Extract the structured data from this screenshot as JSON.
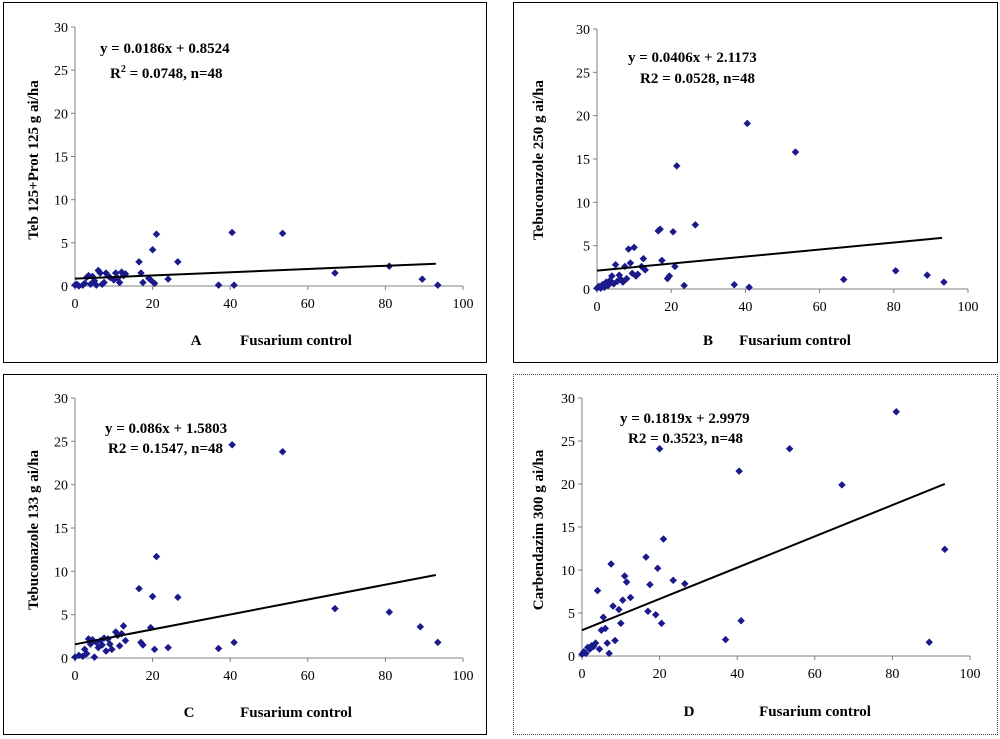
{
  "colors": {
    "marker": "#1a1a8c",
    "trend": "#000000",
    "axis": "#808080"
  },
  "chart_data": [
    {
      "type": "scatter",
      "panel_label": "A",
      "xlabel": "Fusarium control",
      "ylabel": "Teb 125+Prot 125 g ai/ha",
      "equation": "y = 0.0186x + 0.8524",
      "r2_prefix": "R",
      "r2_sup": "2",
      "r2_rest": " = 0.0748, n=48",
      "slope": 0.0186,
      "intercept": 0.8524,
      "trend_x": [
        0,
        93
      ],
      "xlim": [
        0,
        100
      ],
      "ylim": [
        0,
        30
      ],
      "xticks": [
        0,
        20,
        40,
        60,
        80,
        100
      ],
      "yticks": [
        0,
        5,
        10,
        15,
        20,
        25,
        30
      ],
      "points": [
        [
          0,
          0.1
        ],
        [
          0.5,
          0.2
        ],
        [
          1,
          0
        ],
        [
          2,
          0.1
        ],
        [
          2.5,
          0.3
        ],
        [
          3,
          1.0
        ],
        [
          3.5,
          1.2
        ],
        [
          4,
          0.2
        ],
        [
          4.5,
          1.1
        ],
        [
          5,
          0.6
        ],
        [
          5.5,
          0.1
        ],
        [
          6,
          1.8
        ],
        [
          6.5,
          1.5
        ],
        [
          7,
          0.2
        ],
        [
          7.5,
          0.4
        ],
        [
          8,
          1.5
        ],
        [
          8.5,
          1.2
        ],
        [
          9,
          1.0
        ],
        [
          10,
          0.7
        ],
        [
          10.5,
          1.5
        ],
        [
          11,
          0.9
        ],
        [
          11.5,
          0.4
        ],
        [
          12,
          1.6
        ],
        [
          12.5,
          1.2
        ],
        [
          13,
          1.4
        ],
        [
          16.5,
          2.8
        ],
        [
          17,
          1.5
        ],
        [
          17.5,
          0.4
        ],
        [
          19,
          0.9
        ],
        [
          19.5,
          0.7
        ],
        [
          20,
          4.2
        ],
        [
          20.5,
          0.3
        ],
        [
          21,
          6.0
        ],
        [
          24,
          0.8
        ],
        [
          26.5,
          2.8
        ],
        [
          37,
          0.1
        ],
        [
          40.5,
          6.2
        ],
        [
          41,
          0.1
        ],
        [
          53.5,
          6.1
        ],
        [
          67,
          1.5
        ],
        [
          81,
          2.3
        ],
        [
          89.5,
          0.8
        ],
        [
          93.5,
          0.1
        ]
      ]
    },
    {
      "type": "scatter",
      "panel_label": "B",
      "xlabel": "Fusarium control",
      "ylabel": "Tebuconazole 250 g ai/ha",
      "equation": "y = 0.0406x + 2.1173",
      "r2_text": "R2 = 0.0528, n=48",
      "slope": 0.0406,
      "intercept": 2.1173,
      "trend_x": [
        0,
        93
      ],
      "xlim": [
        0,
        100
      ],
      "ylim": [
        0,
        30
      ],
      "xticks": [
        0,
        20,
        40,
        60,
        80,
        100
      ],
      "yticks": [
        0,
        5,
        10,
        15,
        20,
        25,
        30
      ],
      "points": [
        [
          0,
          0.1
        ],
        [
          0.5,
          0.3
        ],
        [
          1,
          0.1
        ],
        [
          1.5,
          0.5
        ],
        [
          2,
          0.2
        ],
        [
          2.5,
          0.8
        ],
        [
          3,
          0.4
        ],
        [
          3.5,
          1.0
        ],
        [
          4,
          1.5
        ],
        [
          4.5,
          0.6
        ],
        [
          5,
          2.8
        ],
        [
          5.5,
          0.9
        ],
        [
          6,
          1.6
        ],
        [
          6.5,
          1.1
        ],
        [
          7,
          0.8
        ],
        [
          7.5,
          2.6
        ],
        [
          8,
          1.2
        ],
        [
          8.5,
          4.6
        ],
        [
          9,
          3.0
        ],
        [
          9.5,
          1.8
        ],
        [
          10,
          4.8
        ],
        [
          10.5,
          1.5
        ],
        [
          11,
          1.7
        ],
        [
          12,
          2.6
        ],
        [
          12.5,
          3.5
        ],
        [
          13,
          2.2
        ],
        [
          16.5,
          6.7
        ],
        [
          17,
          6.9
        ],
        [
          17.5,
          3.3
        ],
        [
          19,
          1.2
        ],
        [
          19.5,
          1.5
        ],
        [
          20.5,
          6.6
        ],
        [
          21,
          2.6
        ],
        [
          21.5,
          14.2
        ],
        [
          23.5,
          0.4
        ],
        [
          26.5,
          7.4
        ],
        [
          37,
          0.5
        ],
        [
          40.5,
          19.1
        ],
        [
          41,
          0.2
        ],
        [
          53.5,
          15.8
        ],
        [
          66.5,
          1.1
        ],
        [
          80.5,
          2.1
        ],
        [
          89,
          1.6
        ],
        [
          93.5,
          0.8
        ]
      ]
    },
    {
      "type": "scatter",
      "panel_label": "C",
      "xlabel": "Fusarium control",
      "ylabel": "Tebuconazole 133 g ai/ha",
      "equation": "y = 0.086x + 1.5803",
      "r2_text": "R2 = 0.1547, n=48",
      "slope": 0.086,
      "intercept": 1.5803,
      "trend_x": [
        0,
        93
      ],
      "xlim": [
        0,
        100
      ],
      "ylim": [
        0,
        30
      ],
      "xticks": [
        0,
        20,
        40,
        60,
        80,
        100
      ],
      "yticks": [
        0,
        5,
        10,
        15,
        20,
        25,
        30
      ],
      "points": [
        [
          0,
          0.1
        ],
        [
          1,
          0.3
        ],
        [
          2,
          0.2
        ],
        [
          2.5,
          1.0
        ],
        [
          3,
          0.5
        ],
        [
          3.5,
          2.2
        ],
        [
          4,
          1.6
        ],
        [
          4.5,
          2.1
        ],
        [
          5,
          0.1
        ],
        [
          5.5,
          1.8
        ],
        [
          6,
          1.2
        ],
        [
          6.5,
          2.0
        ],
        [
          7,
          1.5
        ],
        [
          7.5,
          2.3
        ],
        [
          8,
          0.8
        ],
        [
          8.5,
          2.2
        ],
        [
          9,
          1.6
        ],
        [
          9.5,
          1.0
        ],
        [
          10.5,
          3.0
        ],
        [
          11,
          2.6
        ],
        [
          11.5,
          1.4
        ],
        [
          12,
          2.8
        ],
        [
          12.5,
          3.7
        ],
        [
          13,
          2.0
        ],
        [
          16.5,
          8.0
        ],
        [
          17,
          1.8
        ],
        [
          17.5,
          1.5
        ],
        [
          19.5,
          3.5
        ],
        [
          20,
          7.1
        ],
        [
          20.5,
          1.0
        ],
        [
          21,
          11.7
        ],
        [
          24,
          1.2
        ],
        [
          26.5,
          7.0
        ],
        [
          37,
          1.1
        ],
        [
          40.5,
          24.6
        ],
        [
          41,
          1.8
        ],
        [
          53.5,
          23.8
        ],
        [
          67,
          5.7
        ],
        [
          81,
          5.3
        ],
        [
          89,
          3.6
        ],
        [
          93.5,
          1.8
        ]
      ]
    },
    {
      "type": "scatter",
      "panel_label": "D",
      "xlabel": "Fusarium control",
      "ylabel": "Carbendazim 300 g ai/ha",
      "equation": "y = 0.1819x + 2.9979",
      "r2_text": "R2 = 0.3523, n=48",
      "slope": 0.1819,
      "intercept": 2.9979,
      "trend_x": [
        0,
        93.5
      ],
      "xlim": [
        0,
        100
      ],
      "ylim": [
        0,
        30
      ],
      "xticks": [
        0,
        20,
        40,
        60,
        80,
        100
      ],
      "yticks": [
        0,
        5,
        10,
        15,
        20,
        25,
        30
      ],
      "points": [
        [
          0,
          0.2
        ],
        [
          0.5,
          0.5
        ],
        [
          1,
          0.3
        ],
        [
          1.5,
          1.0
        ],
        [
          2,
          0.8
        ],
        [
          2.5,
          1.2
        ],
        [
          3,
          1.1
        ],
        [
          3.5,
          1.5
        ],
        [
          4,
          7.6
        ],
        [
          4.5,
          0.8
        ],
        [
          5,
          3.0
        ],
        [
          5.5,
          4.5
        ],
        [
          6,
          3.2
        ],
        [
          6.5,
          1.5
        ],
        [
          7,
          0.3
        ],
        [
          7.5,
          10.7
        ],
        [
          8,
          5.8
        ],
        [
          8.5,
          1.8
        ],
        [
          9.5,
          5.4
        ],
        [
          10,
          3.8
        ],
        [
          10.5,
          6.5
        ],
        [
          11,
          9.3
        ],
        [
          11.5,
          8.6
        ],
        [
          12.5,
          6.8
        ],
        [
          16.5,
          11.5
        ],
        [
          17,
          5.2
        ],
        [
          17.5,
          8.3
        ],
        [
          19,
          4.8
        ],
        [
          19.5,
          10.2
        ],
        [
          20,
          24.1
        ],
        [
          20.5,
          3.8
        ],
        [
          21,
          13.6
        ],
        [
          23.5,
          8.8
        ],
        [
          26.5,
          8.4
        ],
        [
          37,
          1.9
        ],
        [
          40.5,
          21.5
        ],
        [
          41,
          4.1
        ],
        [
          53.5,
          24.1
        ],
        [
          67,
          19.9
        ],
        [
          81,
          28.4
        ],
        [
          89.5,
          1.6
        ],
        [
          93.5,
          12.4
        ]
      ]
    }
  ]
}
